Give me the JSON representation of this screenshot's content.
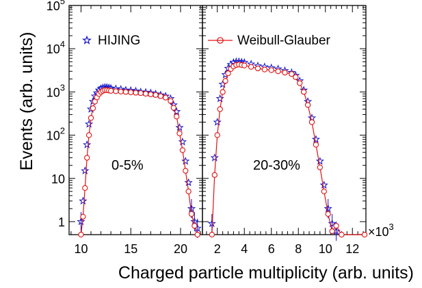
{
  "chart_data": {
    "type": "scatter",
    "ylabel": "Events (arb. units)",
    "xlabel": "Charged particle multiplicity (arb. units)",
    "yscale": "log",
    "ylim": [
      0.5,
      100000
    ],
    "x_multiplier_label": "×10",
    "x_multiplier_exp": "3",
    "colors": {
      "HIJING": "#1010c8",
      "Weibull-Glauber": "#e01010"
    },
    "legend": [
      {
        "label": "HIJING",
        "marker": "star",
        "placement": "panel-1-top-left"
      },
      {
        "label": "Weibull-Glauber",
        "marker": "open-circle-line",
        "placement": "panel-2-top"
      }
    ],
    "y_ticks": [
      {
        "v": 1,
        "base": "1",
        "exp": ""
      },
      {
        "v": 10,
        "base": "10",
        "exp": ""
      },
      {
        "v": 100,
        "base": "10",
        "exp": "2"
      },
      {
        "v": 1000,
        "base": "10",
        "exp": "3"
      },
      {
        "v": 10000,
        "base": "10",
        "exp": "4"
      },
      {
        "v": 100000,
        "base": "10",
        "exp": "5"
      }
    ],
    "panels": [
      {
        "label": "0-5%",
        "xlim": [
          8.8,
          22.2
        ],
        "x_ticks": [
          10,
          15,
          20
        ],
        "x_tick_labels": [
          "10",
          "15",
          "20"
        ],
        "series": [
          {
            "name": "HIJING",
            "x": [
              10,
              10.2,
              10.4,
              10.6,
              10.8,
              11,
              11.2,
              11.4,
              11.6,
              11.8,
              12,
              12.2,
              12.4,
              12.6,
              12.8,
              13,
              13.5,
              14,
              14.5,
              15,
              15.5,
              16,
              16.5,
              17,
              17.5,
              18,
              18.5,
              19,
              19.3,
              19.6,
              19.9,
              20.2,
              20.5,
              20.8,
              21.1,
              21.4,
              21.7
            ],
            "y": [
              1,
              3,
              15,
              60,
              180,
              400,
              600,
              800,
              950,
              1100,
              1200,
              1250,
              1280,
              1280,
              1250,
              1220,
              1180,
              1150,
              1100,
              1080,
              1050,
              1000,
              980,
              950,
              900,
              850,
              800,
              700,
              500,
              350,
              150,
              70,
              25,
              8,
              2,
              1,
              0.7
            ]
          },
          {
            "name": "Weibull-Glauber",
            "x": [
              10,
              10.2,
              10.4,
              10.6,
              10.8,
              11,
              11.2,
              11.4,
              11.6,
              11.8,
              12,
              12.2,
              12.4,
              12.6,
              12.8,
              13,
              13.5,
              14,
              14.5,
              15,
              15.5,
              16,
              16.5,
              17,
              17.5,
              18,
              18.5,
              19,
              19.3,
              19.6,
              19.9,
              20.2,
              20.5,
              20.8,
              21.1,
              21.4,
              21.7
            ],
            "y": [
              0.5,
              1.3,
              6,
              30,
              100,
              250,
              420,
              600,
              750,
              900,
              1000,
              1060,
              1100,
              1100,
              1080,
              1060,
              1040,
              1020,
              1000,
              980,
              960,
              940,
              910,
              880,
              850,
              800,
              740,
              620,
              430,
              270,
              110,
              45,
              15,
              5,
              1.5,
              0.8,
              0.5
            ]
          }
        ]
      },
      {
        "label": "20-30%",
        "xlim": [
          0.9,
          13.0
        ],
        "x_ticks": [
          2,
          4,
          6,
          8,
          10,
          12
        ],
        "x_tick_labels": [
          "2",
          "4",
          "6",
          "8",
          "10",
          "12"
        ],
        "series": [
          {
            "name": "HIJING",
            "x": [
              1.6,
              1.8,
              2.0,
              2.2,
              2.4,
              2.6,
              2.8,
              3.0,
              3.2,
              3.4,
              3.6,
              3.8,
              4.0,
              4.5,
              5.0,
              5.5,
              6.0,
              6.5,
              7.0,
              7.5,
              7.8,
              8.1,
              8.4,
              8.7,
              9.0,
              9.3,
              9.6,
              9.9,
              10.2,
              10.5,
              10.8
            ],
            "y": [
              0.9,
              30,
              200,
              700,
              1500,
              2500,
              3500,
              4300,
              4800,
              5000,
              5000,
              4900,
              4800,
              4400,
              4000,
              3800,
              3600,
              3400,
              3100,
              2800,
              2400,
              1800,
              1100,
              600,
              250,
              80,
              25,
              7,
              2,
              0.9,
              0.6
            ]
          },
          {
            "name": "Weibull-Glauber",
            "x": [
              1.6,
              1.8,
              2.0,
              2.2,
              2.4,
              2.6,
              2.8,
              3.0,
              3.2,
              3.4,
              3.6,
              3.8,
              4.0,
              4.5,
              5.0,
              5.5,
              6.0,
              6.5,
              7.0,
              7.5,
              7.8,
              8.1,
              8.4,
              8.7,
              9.0,
              9.3,
              9.6,
              9.9,
              10.2,
              10.5,
              10.8,
              11.2,
              12.9
            ],
            "y": [
              0.5,
              12,
              100,
              400,
              1000,
              1800,
              2700,
              3400,
              3900,
              4200,
              4300,
              4200,
              4100,
              3800,
              3500,
              3300,
              3200,
              3000,
              2800,
              2600,
              2200,
              1600,
              1000,
              500,
              200,
              60,
              18,
              5,
              1.5,
              0.6,
              0.8,
              0.5,
              0.5
            ]
          }
        ]
      }
    ]
  }
}
